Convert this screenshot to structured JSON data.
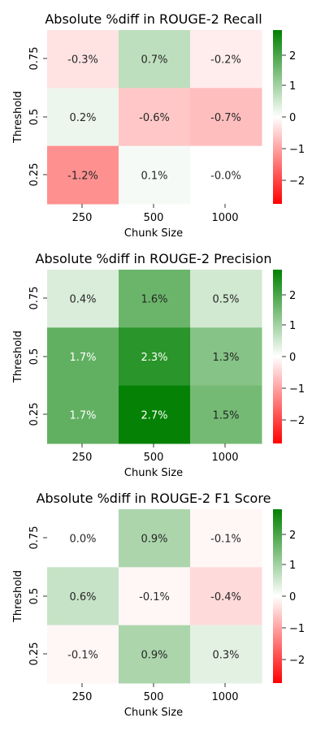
{
  "colors": {
    "negative": "#ff0000",
    "zero": "#ffffff",
    "positive": "#008000",
    "dark_text": "#262626",
    "light_text": "#ffffff"
  },
  "chart_data": [
    {
      "type": "heatmap",
      "title": "Absolute %diff in ROUGE-2 Recall",
      "xlabel": "Chunk Size",
      "ylabel": "Threshold",
      "x": [
        "250",
        "500",
        "1000"
      ],
      "y": [
        "0.75",
        "0.5",
        "0.25"
      ],
      "values": [
        [
          -0.3,
          0.7,
          -0.2
        ],
        [
          0.2,
          -0.6,
          -0.7
        ],
        [
          -1.2,
          0.1,
          -0.0
        ]
      ],
      "labels": [
        [
          "-0.3%",
          "0.7%",
          "-0.2%"
        ],
        [
          "0.2%",
          "-0.6%",
          "-0.7%"
        ],
        [
          "-1.2%",
          "0.1%",
          "-0.0%"
        ]
      ],
      "colorbar": {
        "range": [
          -2.75,
          2.75
        ],
        "ticks": [
          2,
          1,
          0,
          -1,
          -2
        ],
        "tick_labels": [
          "2",
          "1",
          "0",
          "−1",
          "−2"
        ]
      }
    },
    {
      "type": "heatmap",
      "title": "Absolute %diff in ROUGE-2 Precision",
      "xlabel": "Chunk Size",
      "ylabel": "Threshold",
      "x": [
        "250",
        "500",
        "1000"
      ],
      "y": [
        "0.75",
        "0.5",
        "0.25"
      ],
      "values": [
        [
          0.4,
          1.6,
          0.5
        ],
        [
          1.7,
          2.3,
          1.3
        ],
        [
          1.7,
          2.7,
          1.5
        ]
      ],
      "labels": [
        [
          "0.4%",
          "1.6%",
          "0.5%"
        ],
        [
          "1.7%",
          "2.3%",
          "1.3%"
        ],
        [
          "1.7%",
          "2.7%",
          "1.5%"
        ]
      ],
      "colorbar": {
        "range": [
          -2.75,
          2.75
        ],
        "ticks": [
          2,
          1,
          0,
          -1,
          -2
        ],
        "tick_labels": [
          "2",
          "1",
          "0",
          "−1",
          "−2"
        ]
      }
    },
    {
      "type": "heatmap",
      "title": "Absolute %diff in ROUGE-2 F1 Score",
      "xlabel": "Chunk Size",
      "ylabel": "Threshold",
      "x": [
        "250",
        "500",
        "1000"
      ],
      "y": [
        "0.75",
        "0.5",
        "0.25"
      ],
      "values": [
        [
          0.0,
          0.9,
          -0.1
        ],
        [
          0.6,
          -0.1,
          -0.4
        ],
        [
          -0.1,
          0.9,
          0.3
        ]
      ],
      "labels": [
        [
          "0.0%",
          "0.9%",
          "-0.1%"
        ],
        [
          "0.6%",
          "-0.1%",
          "-0.4%"
        ],
        [
          "-0.1%",
          "0.9%",
          "0.3%"
        ]
      ],
      "colorbar": {
        "range": [
          -2.75,
          2.75
        ],
        "ticks": [
          2,
          1,
          0,
          -1,
          -2
        ],
        "tick_labels": [
          "2",
          "1",
          "0",
          "−1",
          "−2"
        ]
      }
    }
  ]
}
